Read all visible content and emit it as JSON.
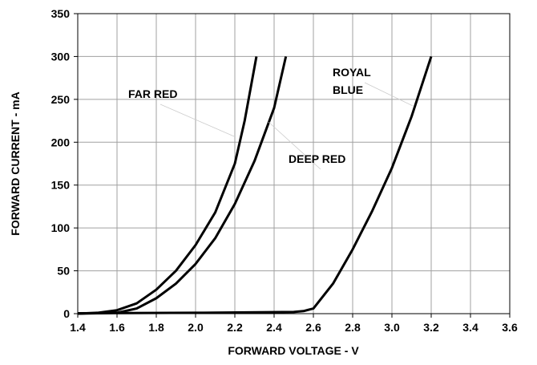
{
  "chart_data": {
    "type": "line",
    "xlabel": "FORWARD VOLTAGE - V",
    "ylabel": "FORWARD CURRENT - mA",
    "xlim": [
      1.4,
      3.6
    ],
    "xticks": [
      1.4,
      1.6,
      1.8,
      {
        "value": 2.0,
        "label": "2.0"
      },
      2.2,
      2.4,
      2.6,
      2.8,
      {
        "value": 3.0,
        "label": "3.0"
      },
      3.2,
      3.4,
      3.6
    ],
    "ylim": [
      0,
      350
    ],
    "yticks": [
      0,
      50,
      100,
      150,
      200,
      250,
      300,
      350
    ],
    "grid": true,
    "series": [
      {
        "name": "FAR RED",
        "color": "#000000",
        "x": [
          1.4,
          1.5,
          1.6,
          1.7,
          1.8,
          1.9,
          2.0,
          2.1,
          2.2,
          2.25,
          2.31
        ],
        "values": [
          0,
          1,
          4,
          12,
          28,
          50,
          80,
          118,
          175,
          225,
          300
        ]
      },
      {
        "name": "DEEP RED",
        "color": "#000000",
        "x": [
          1.4,
          1.5,
          1.6,
          1.7,
          1.8,
          1.9,
          2.0,
          2.1,
          2.2,
          2.3,
          2.4,
          2.46
        ],
        "values": [
          0,
          0.5,
          1,
          6,
          18,
          35,
          58,
          88,
          128,
          178,
          240,
          300
        ]
      },
      {
        "name": "ROYAL BLUE",
        "color": "#000000",
        "x": [
          1.4,
          2.0,
          2.5,
          2.55,
          2.6,
          2.7,
          2.8,
          2.9,
          3.0,
          3.1,
          3.2
        ],
        "values": [
          0.5,
          1,
          2,
          3,
          6,
          35,
          75,
          120,
          170,
          230,
          300
        ]
      }
    ]
  }
}
